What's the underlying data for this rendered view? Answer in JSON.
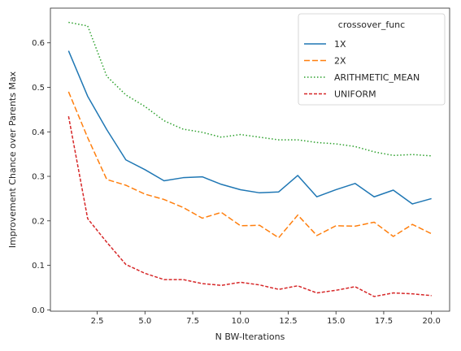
{
  "chart_data": {
    "type": "line",
    "title": "",
    "xlabel": "N BW-Iterations",
    "ylabel": "Improvement Chance over Parents Max",
    "xlim": [
      0.05,
      20.95
    ],
    "ylim": [
      -0.003,
      0.678
    ],
    "xticks": [
      2.5,
      5.0,
      7.5,
      10.0,
      12.5,
      15.0,
      17.5,
      20.0
    ],
    "xtick_labels": [
      "2.5",
      "5.0",
      "7.5",
      "10.0",
      "12.5",
      "15.0",
      "17.5",
      "20.0"
    ],
    "yticks": [
      0.0,
      0.1,
      0.2,
      0.3,
      0.4,
      0.5,
      0.6
    ],
    "ytick_labels": [
      "0.0",
      "0.1",
      "0.2",
      "0.3",
      "0.4",
      "0.5",
      "0.6"
    ],
    "grid": false,
    "legend_title": "crossover_func",
    "legend_position": "top-right",
    "x": [
      1,
      2,
      3,
      4,
      5,
      6,
      7,
      8,
      9,
      10,
      11,
      12,
      13,
      14,
      15,
      16,
      17,
      18,
      19,
      20
    ],
    "series": [
      {
        "name": "1X",
        "color": "#1f77b4",
        "dash": "solid",
        "values": [
          0.582,
          0.48,
          0.405,
          0.337,
          0.315,
          0.29,
          0.297,
          0.299,
          0.282,
          0.27,
          0.263,
          0.265,
          0.302,
          0.254,
          0.27,
          0.284,
          0.254,
          0.269,
          0.238,
          0.25
        ]
      },
      {
        "name": "2X",
        "color": "#ff7f0e",
        "dash": "dashed",
        "values": [
          0.49,
          0.387,
          0.293,
          0.28,
          0.26,
          0.248,
          0.23,
          0.206,
          0.219,
          0.189,
          0.19,
          0.162,
          0.213,
          0.167,
          0.189,
          0.188,
          0.197,
          0.165,
          0.192,
          0.171
        ]
      },
      {
        "name": "ARITHMETIC_MEAN",
        "color": "#2ca02c",
        "dash": "dotted",
        "values": [
          0.646,
          0.638,
          0.525,
          0.483,
          0.457,
          0.425,
          0.406,
          0.399,
          0.388,
          0.394,
          0.388,
          0.382,
          0.382,
          0.376,
          0.373,
          0.367,
          0.355,
          0.347,
          0.349,
          0.346
        ]
      },
      {
        "name": "UNIFORM",
        "color": "#d62728",
        "dash": "dashed-short",
        "values": [
          0.435,
          0.205,
          0.152,
          0.102,
          0.082,
          0.068,
          0.068,
          0.059,
          0.055,
          0.062,
          0.056,
          0.046,
          0.054,
          0.038,
          0.044,
          0.052,
          0.03,
          0.038,
          0.036,
          0.032
        ]
      }
    ]
  }
}
